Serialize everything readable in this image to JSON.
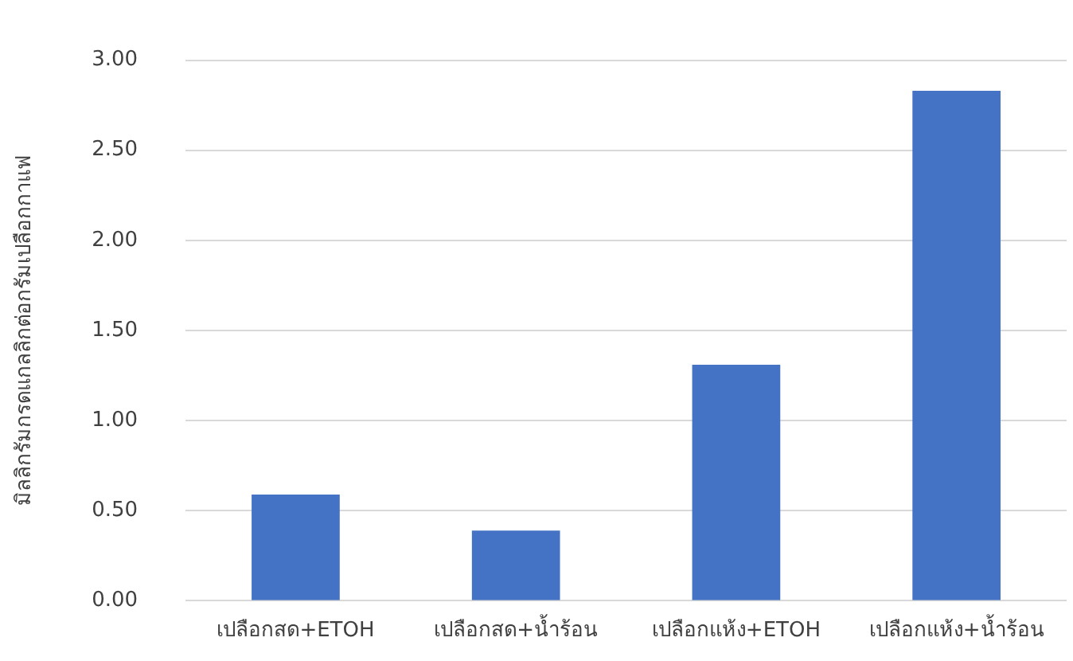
{
  "chart_data": {
    "type": "bar",
    "ylabel": "มิลลิกรัมกรดแกลลิกต่อกรัมเปลือกกาแฟ",
    "categories": [
      "เปลือกสด+ETOH",
      "เปลือกสด+น้ำร้อน",
      "เปลือกแห้ง+ETOH",
      "เปลือกแห้ง+น้ำร้อน"
    ],
    "values": [
      0.59,
      0.39,
      1.31,
      2.83
    ],
    "color": "#4472c4",
    "ylim": [
      0,
      3
    ],
    "yticks": [
      {
        "value": 0,
        "label": "0.00"
      },
      {
        "value": 0.5,
        "label": "0.50"
      },
      {
        "value": 1,
        "label": "1.00"
      },
      {
        "value": 1.5,
        "label": "1.50"
      },
      {
        "value": 2,
        "label": "2.00"
      },
      {
        "value": 2.5,
        "label": "2.50"
      },
      {
        "value": 3,
        "label": "3.00"
      }
    ],
    "grid": "y"
  }
}
